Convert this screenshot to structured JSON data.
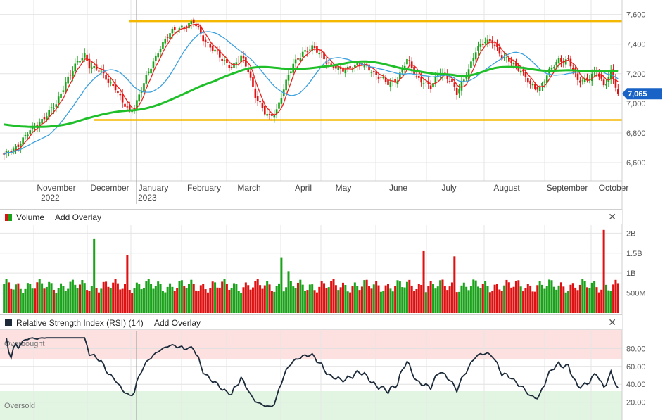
{
  "price_panel": {
    "current_price_label": "7,065",
    "colors": {
      "up": "#1aa31a",
      "down": "#dd1111",
      "ma_fast": "#e8231f",
      "ma_mid": "#3ba0e0",
      "ma_slow": "#1fbf2a",
      "level": "#f5b800",
      "price_tag": "#1a63c6",
      "grid": "#e4e4e4"
    }
  },
  "volume_panel": {
    "title": "Volume",
    "add_overlay_label": "Add Overlay",
    "close_icon": "close-icon"
  },
  "rsi_panel": {
    "title": "Relative Strength Index (RSI) (14)",
    "add_overlay_label": "Add Overlay",
    "overbought_label": "Overbought",
    "oversold_label": "Oversold",
    "close_icon": "close-icon"
  },
  "chart_data": [
    {
      "type": "candlestick",
      "title": "",
      "x_labels": [
        {
          "label": "November",
          "sub": "2022"
        },
        {
          "label": "December",
          "sub": ""
        },
        {
          "label": "January",
          "sub": "2023"
        },
        {
          "label": "February",
          "sub": ""
        },
        {
          "label": "March",
          "sub": ""
        },
        {
          "label": "April",
          "sub": ""
        },
        {
          "label": "May",
          "sub": ""
        },
        {
          "label": "June",
          "sub": ""
        },
        {
          "label": "July",
          "sub": ""
        },
        {
          "label": "August",
          "sub": ""
        },
        {
          "label": "September",
          "sub": ""
        },
        {
          "label": "October",
          "sub": ""
        }
      ],
      "y_ticks": [
        {
          "value": 7600,
          "label": "7,600"
        },
        {
          "value": 7400,
          "label": "7,400"
        },
        {
          "value": 7200,
          "label": "7,200"
        },
        {
          "value": 7000,
          "label": "7,000"
        },
        {
          "value": 6800,
          "label": "6,800"
        },
        {
          "value": 6600,
          "label": "6,600"
        }
      ],
      "ylim": [
        6510,
        7660
      ],
      "horizontal_levels": [
        7555,
        6888
      ],
      "close_anchors": [
        [
          0,
          6645
        ],
        [
          4,
          6690
        ],
        [
          8,
          6760
        ],
        [
          14,
          6860
        ],
        [
          22,
          6990
        ],
        [
          26,
          7150
        ],
        [
          30,
          7250
        ],
        [
          34,
          7330
        ],
        [
          36,
          7260
        ],
        [
          40,
          7220
        ],
        [
          44,
          7150
        ],
        [
          47,
          7110
        ],
        [
          50,
          7000
        ],
        [
          53,
          6940
        ],
        [
          55,
          6980
        ],
        [
          58,
          7100
        ],
        [
          62,
          7240
        ],
        [
          66,
          7390
        ],
        [
          70,
          7470
        ],
        [
          75,
          7520
        ],
        [
          80,
          7545
        ],
        [
          84,
          7440
        ],
        [
          88,
          7370
        ],
        [
          92,
          7290
        ],
        [
          96,
          7250
        ],
        [
          100,
          7310
        ],
        [
          103,
          7220
        ],
        [
          106,
          7060
        ],
        [
          110,
          6930
        ],
        [
          112,
          6900
        ],
        [
          115,
          6960
        ],
        [
          118,
          7100
        ],
        [
          122,
          7260
        ],
        [
          126,
          7350
        ],
        [
          130,
          7370
        ],
        [
          134,
          7330
        ],
        [
          138,
          7250
        ],
        [
          142,
          7220
        ],
        [
          146,
          7250
        ],
        [
          150,
          7260
        ],
        [
          154,
          7240
        ],
        [
          158,
          7180
        ],
        [
          162,
          7130
        ],
        [
          166,
          7170
        ],
        [
          170,
          7290
        ],
        [
          174,
          7180
        ],
        [
          177,
          7150
        ],
        [
          180,
          7100
        ],
        [
          184,
          7220
        ],
        [
          188,
          7160
        ],
        [
          191,
          7060
        ],
        [
          195,
          7200
        ],
        [
          199,
          7350
        ],
        [
          203,
          7420
        ],
        [
          206,
          7430
        ],
        [
          210,
          7300
        ],
        [
          214,
          7290
        ],
        [
          218,
          7220
        ],
        [
          222,
          7120
        ],
        [
          226,
          7110
        ],
        [
          230,
          7210
        ],
        [
          234,
          7300
        ],
        [
          238,
          7290
        ],
        [
          242,
          7150
        ],
        [
          246,
          7170
        ],
        [
          250,
          7210
        ],
        [
          253,
          7120
        ],
        [
          256,
          7220
        ],
        [
          259,
          7065
        ]
      ],
      "moving_average_windows": [
        5,
        20,
        90
      ]
    },
    {
      "type": "bar",
      "title": "Volume",
      "y_ticks": [
        {
          "value": 2.0,
          "label": "2B"
        },
        {
          "value": 1.5,
          "label": "1.5B"
        },
        {
          "value": 1.0,
          "label": "1B"
        },
        {
          "value": 0.5,
          "label": "500M"
        }
      ],
      "ylim": [
        0,
        2.2
      ],
      "baseline_billions": 0.68,
      "spikes_billions": [
        [
          38,
          1.85
        ],
        [
          52,
          1.45
        ],
        [
          117,
          1.38
        ],
        [
          120,
          1.05
        ],
        [
          177,
          1.55
        ],
        [
          190,
          1.42
        ],
        [
          253,
          2.08
        ]
      ]
    },
    {
      "type": "line",
      "title": "Relative Strength Index (RSI) (14)",
      "y_ticks": [
        {
          "value": 80,
          "label": "80.00"
        },
        {
          "value": 60,
          "label": "60.00"
        },
        {
          "value": 40,
          "label": "40.00"
        },
        {
          "value": 20,
          "label": "20.00"
        }
      ],
      "ylim": [
        0,
        100
      ],
      "overbought_zone": [
        70,
        100
      ],
      "oversold_zone": [
        0,
        30
      ],
      "period": 14
    }
  ]
}
